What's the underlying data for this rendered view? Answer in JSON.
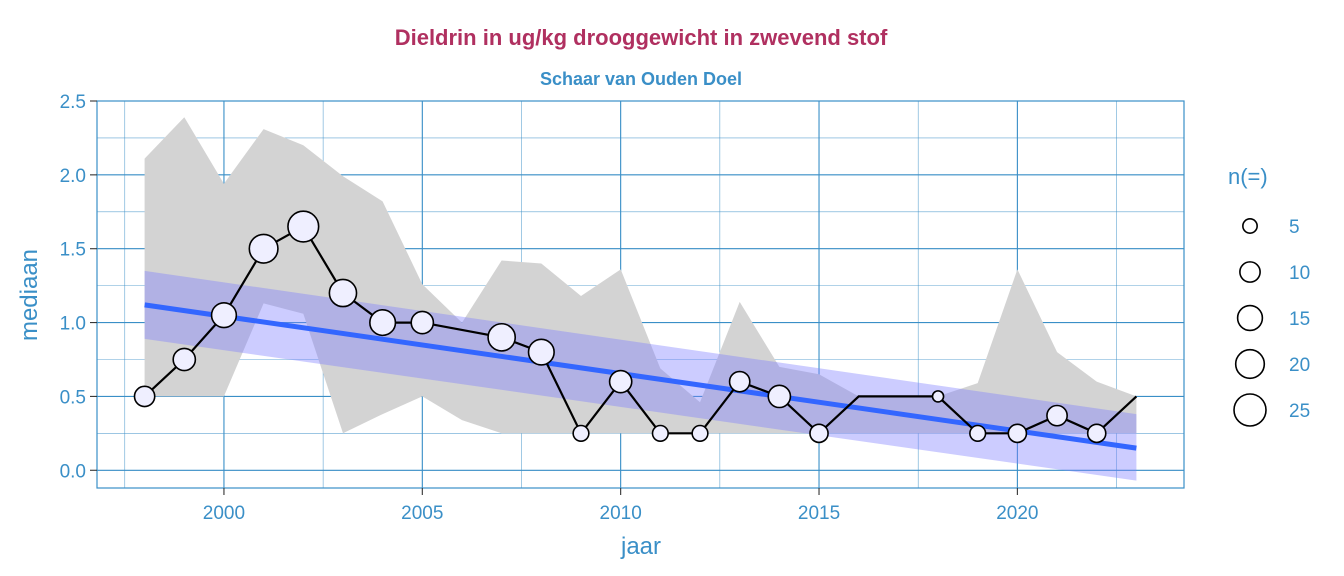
{
  "chart_data": {
    "type": "line",
    "title": "Dieldrin in ug/kg drooggewicht in zwevend stof",
    "subtitle": "Schaar van Ouden Doel",
    "xlabel": "jaar",
    "ylabel": "mediaan",
    "xlim": [
      1996.8,
      2024.2
    ],
    "ylim": [
      -0.12,
      2.5
    ],
    "x_ticks": [
      2000,
      2005,
      2010,
      2015,
      2020
    ],
    "x_tick_labels": [
      "2000",
      "2005",
      "2010",
      "2015",
      "2020"
    ],
    "y_ticks": [
      0.0,
      0.5,
      1.0,
      1.5,
      2.0,
      2.5
    ],
    "y_tick_labels": [
      "0.0",
      "0.5",
      "1.0",
      "1.5",
      "2.0",
      "2.5"
    ],
    "grid": true,
    "series": [
      {
        "name": "mediaan",
        "x": [
          1998,
          1999,
          2000,
          2001,
          2002,
          2003,
          2004,
          2005,
          2007,
          2008,
          2009,
          2010,
          2011,
          2012,
          2013,
          2014,
          2015,
          2018,
          2019,
          2020,
          2021,
          2022
        ],
        "values": [
          0.5,
          0.75,
          1.05,
          1.5,
          1.65,
          1.2,
          1.0,
          1.0,
          0.9,
          0.8,
          0.25,
          0.6,
          0.25,
          0.25,
          0.6,
          0.5,
          0.25,
          0.5,
          0.25,
          0.25,
          0.37,
          0.25
        ],
        "n": [
          10,
          12,
          15,
          20,
          23,
          18,
          16,
          12,
          18,
          16,
          6,
          12,
          6,
          6,
          10,
          12,
          8,
          3,
          6,
          8,
          10,
          8
        ]
      },
      {
        "name": "mediaan-lijn",
        "x": [
          1998,
          1999,
          2000,
          2001,
          2002,
          2003,
          2004,
          2005,
          2007,
          2008,
          2009,
          2010,
          2011,
          2012,
          2013,
          2014,
          2015,
          2016,
          2018,
          2019,
          2020,
          2021,
          2022,
          2023
        ],
        "values": [
          0.5,
          0.75,
          1.05,
          1.5,
          1.65,
          1.2,
          1.0,
          1.0,
          0.9,
          0.8,
          0.25,
          0.6,
          0.25,
          0.25,
          0.6,
          0.5,
          0.25,
          0.5,
          0.5,
          0.25,
          0.25,
          0.37,
          0.25,
          0.5
        ]
      }
    ],
    "range_band": {
      "x": [
        1998,
        1999,
        2000,
        2001,
        2002,
        2003,
        2004,
        2005,
        2006,
        2007,
        2008,
        2009,
        2010,
        2011,
        2012,
        2013,
        2014,
        2015,
        2016,
        2017,
        2018,
        2019,
        2020,
        2021,
        2022,
        2023
      ],
      "upper": [
        2.11,
        2.39,
        1.94,
        2.31,
        2.2,
        1.99,
        1.82,
        1.26,
        1.0,
        1.42,
        1.4,
        1.18,
        1.36,
        0.69,
        0.46,
        1.14,
        0.7,
        0.65,
        0.5,
        0.5,
        0.5,
        0.59,
        1.36,
        0.8,
        0.6,
        0.5
      ],
      "lower": [
        0.5,
        0.5,
        0.5,
        1.13,
        1.06,
        0.25,
        0.38,
        0.5,
        0.34,
        0.25,
        0.25,
        0.25,
        0.25,
        0.25,
        0.25,
        0.25,
        0.25,
        0.25,
        0.25,
        0.25,
        0.25,
        0.25,
        0.25,
        0.25,
        0.25,
        0.25
      ]
    },
    "trend": {
      "x": [
        1998,
        2023
      ],
      "values": [
        1.12,
        0.15
      ],
      "ci_upper": [
        1.35,
        0.38
      ],
      "ci_lower": [
        0.89,
        -0.07
      ]
    },
    "legend": {
      "title": "n(=)",
      "sizes": [
        5,
        10,
        15,
        20,
        25
      ],
      "labels": [
        "5",
        "10",
        "15",
        "20",
        "25"
      ],
      "placement": "right"
    },
    "colors": {
      "title": "#B03060",
      "accent": "#3A8FC7",
      "band": "#D3D3D3",
      "trend_line": "#3366FF",
      "trend_ci": "#B3B3FF",
      "points_fill": "#EFEFFF"
    }
  }
}
